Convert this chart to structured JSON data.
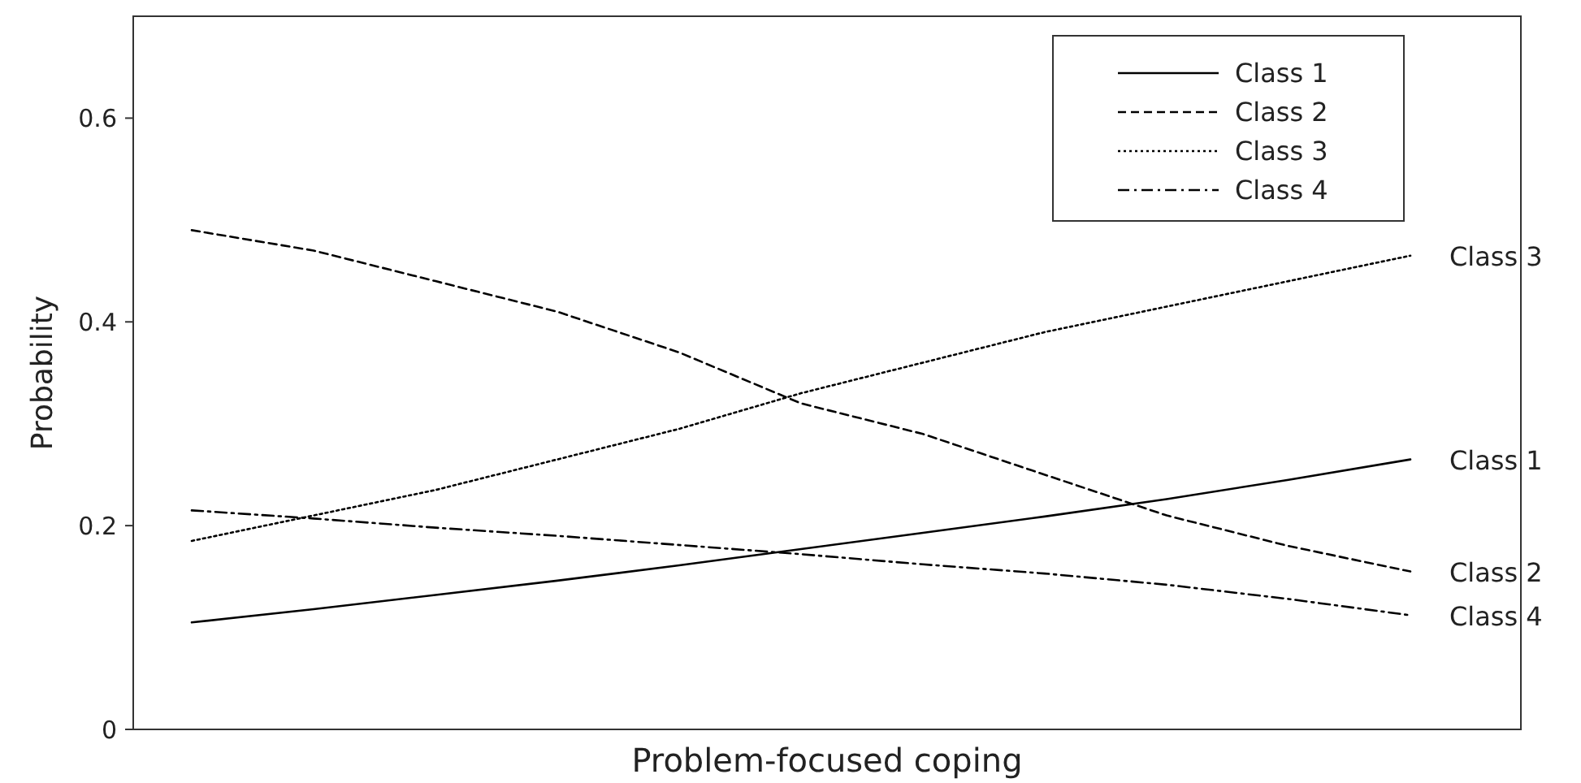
{
  "chart_data": {
    "type": "line",
    "xlabel": "Problem-focused coping",
    "ylabel": "Probability",
    "categories": [
      null,
      null,
      null,
      null,
      null,
      null,
      null,
      null,
      null,
      null,
      null
    ],
    "series": [
      {
        "name": "Class 1",
        "color": "#000000",
        "line_style": "solid",
        "values": [
          0.105,
          0.118,
          0.132,
          0.146,
          0.161,
          0.177,
          0.193,
          0.209,
          0.226,
          0.245,
          0.265
        ]
      },
      {
        "name": "Class 2",
        "color": "#000000",
        "line_style": "dashed",
        "values": [
          0.49,
          0.47,
          0.44,
          0.41,
          0.37,
          0.32,
          0.29,
          0.25,
          0.21,
          0.18,
          0.155
        ]
      },
      {
        "name": "Class 3",
        "color": "#000000",
        "line_style": "dotted",
        "values": [
          0.185,
          0.21,
          0.235,
          0.265,
          0.295,
          0.33,
          0.36,
          0.39,
          0.415,
          0.44,
          0.465
        ]
      },
      {
        "name": "Class 4",
        "color": "#000000",
        "line_style": "dashdot",
        "values": [
          0.215,
          0.207,
          0.198,
          0.19,
          0.181,
          0.172,
          0.162,
          0.153,
          0.142,
          0.128,
          0.112
        ]
      }
    ],
    "ylim": [
      0,
      0.7
    ],
    "yticks": [
      0,
      0.2,
      0.4,
      0.6
    ],
    "tick_labels": "y",
    "grid": false,
    "legend": "top right",
    "marker": "none"
  }
}
